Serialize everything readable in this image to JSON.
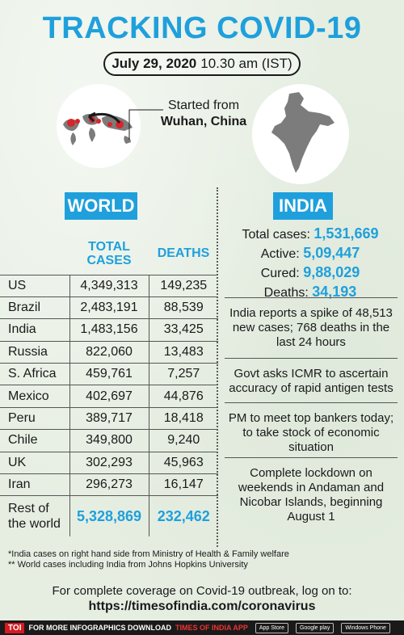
{
  "title": "TRACKING COVID-19",
  "date": {
    "day": "July 29, 2020",
    "time": "10.30 am (IST)"
  },
  "origin": {
    "line1": "Started from",
    "line2": "Wuhan, China"
  },
  "world": {
    "badge": "WORLD",
    "headers": {
      "cases": "TOTAL CASES",
      "deaths": "DEATHS"
    },
    "rows": [
      {
        "country": "US",
        "cases": "4,349,313",
        "deaths": "149,235"
      },
      {
        "country": "Brazil",
        "cases": "2,483,191",
        "deaths": "88,539"
      },
      {
        "country": "India",
        "cases": "1,483,156",
        "deaths": "33,425"
      },
      {
        "country": "Russia",
        "cases": "822,060",
        "deaths": "13,483"
      },
      {
        "country": "S. Africa",
        "cases": "459,761",
        "deaths": "7,257"
      },
      {
        "country": "Mexico",
        "cases": "402,697",
        "deaths": "44,876"
      },
      {
        "country": "Peru",
        "cases": "389,717",
        "deaths": "18,418"
      },
      {
        "country": "Chile",
        "cases": "349,800",
        "deaths": "9,240"
      },
      {
        "country": "UK",
        "cases": "302,293",
        "deaths": "45,963"
      },
      {
        "country": "Iran",
        "cases": "296,273",
        "deaths": "16,147"
      }
    ],
    "rest": {
      "label1": "Rest of",
      "label2": "the world",
      "cases": "5,328,869",
      "deaths": "232,462"
    }
  },
  "india": {
    "badge": "INDIA",
    "total_label": "Total cases:",
    "total": "1,531,669",
    "active_label": "Active:",
    "active": "5,09,447",
    "cured_label": "Cured:",
    "cured": "9,88,029",
    "deaths_label": "Deaths:",
    "deaths": "34,193",
    "news": [
      "India reports a spike of 48,513 new cases; 768 deaths in the last 24 hours",
      "Govt asks ICMR to ascertain accuracy of rapid antigen tests",
      "PM to meet top bankers today; to take stock of economic situation",
      "Complete lockdown on weekends in Andaman and Nicobar Islands, beginning August 1"
    ]
  },
  "notes": [
    "*India cases on right hand side from Ministry of Health & Family welfare",
    "** World cases including India from Johns Hopkins University"
  ],
  "coverage": {
    "text": "For complete coverage on Covid-19 outbreak, log on to:",
    "url": "https://timesofindia.com/coronavirus"
  },
  "footer": {
    "logo": "TOI",
    "text": "FOR MORE INFOGRAPHICS DOWNLOAD",
    "app": "TIMES OF INDIA APP",
    "stores": [
      "App Store",
      "Google play",
      "Windows Phone"
    ]
  },
  "colors": {
    "accent": "#1fa0dc",
    "map_red": "#d7262b",
    "map_grey": "#7c7c7c"
  }
}
